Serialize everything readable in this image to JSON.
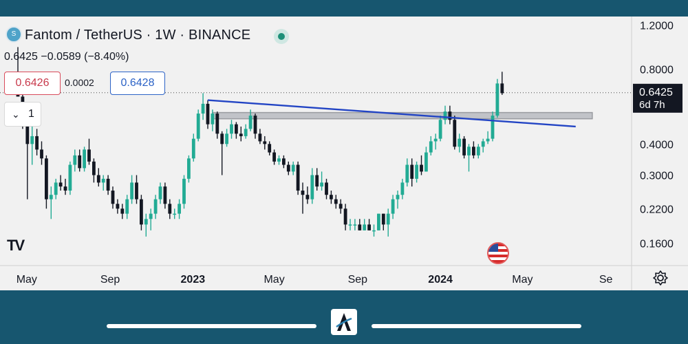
{
  "header": {
    "symbol_icon": "S",
    "title": "Fantom / TetherUS · 1W · BINANCE",
    "ohlc_change": "0.6425  −0.0589 (−8.40%)",
    "sell_price": "0.6426",
    "spread": "0.0002",
    "buy_price": "0.6428",
    "indicator_count": "1",
    "indicator_chevron": "⌄"
  },
  "overlays": {
    "watermark": "TV",
    "icons": [
      "status-dot-icon",
      "us-flag-icon",
      "settings-gear-icon",
      "app-logo-icon",
      "chevron-down-icon"
    ]
  },
  "colors": {
    "up": "#22ab94",
    "down": "#131722",
    "trendline": "#2244c4",
    "zone": "#b9bcc2",
    "background": "#f1f1f1",
    "frame": "#17566f"
  },
  "chart_data": {
    "type": "candlestick",
    "title": "Fantom / TetherUS · 1W · BINANCE",
    "scale": "log",
    "ylim": [
      0.13,
      1.3
    ],
    "y_ticks": [
      1.2,
      0.8,
      0.4,
      0.3,
      0.22,
      0.16
    ],
    "y_tick_labels": [
      "1.2000",
      "0.8000",
      "0.4000",
      "0.3000",
      "0.2200",
      "0.1600"
    ],
    "x_tick_labels": [
      "May",
      "Sep",
      "2023",
      "May",
      "Sep",
      "2024",
      "May",
      "Se"
    ],
    "x_ticks": [
      "2022-05",
      "2022-09",
      "2023-01",
      "2023-05",
      "2023-09",
      "2024-01",
      "2024-05",
      "2024-09"
    ],
    "bold_x_ticks": [
      "2023",
      "2024"
    ],
    "last_price": "0.6425",
    "last_price_value": 0.6425,
    "countdown": "6d 7h",
    "candles_approx": [
      [
        0.72,
        0.98,
        0.64,
        0.62
      ],
      [
        0.62,
        0.66,
        0.46,
        0.48
      ],
      [
        0.48,
        0.57,
        0.24,
        0.4
      ],
      [
        0.4,
        0.47,
        0.33,
        0.43
      ],
      [
        0.43,
        0.46,
        0.36,
        0.38
      ],
      [
        0.38,
        0.41,
        0.33,
        0.35
      ],
      [
        0.35,
        0.36,
        0.22,
        0.24
      ],
      [
        0.24,
        0.27,
        0.2,
        0.25
      ],
      [
        0.25,
        0.29,
        0.24,
        0.28
      ],
      [
        0.28,
        0.3,
        0.26,
        0.27
      ],
      [
        0.27,
        0.29,
        0.25,
        0.26
      ],
      [
        0.26,
        0.34,
        0.25,
        0.33
      ],
      [
        0.33,
        0.38,
        0.31,
        0.36
      ],
      [
        0.36,
        0.38,
        0.31,
        0.32
      ],
      [
        0.32,
        0.39,
        0.31,
        0.38
      ],
      [
        0.38,
        0.42,
        0.33,
        0.34
      ],
      [
        0.34,
        0.35,
        0.28,
        0.3
      ],
      [
        0.3,
        0.32,
        0.27,
        0.28
      ],
      [
        0.28,
        0.3,
        0.26,
        0.29
      ],
      [
        0.29,
        0.3,
        0.25,
        0.26
      ],
      [
        0.26,
        0.27,
        0.22,
        0.23
      ],
      [
        0.23,
        0.24,
        0.21,
        0.22
      ],
      [
        0.22,
        0.23,
        0.2,
        0.21
      ],
      [
        0.21,
        0.25,
        0.2,
        0.24
      ],
      [
        0.24,
        0.3,
        0.23,
        0.28
      ],
      [
        0.28,
        0.3,
        0.23,
        0.24
      ],
      [
        0.24,
        0.25,
        0.18,
        0.19
      ],
      [
        0.19,
        0.21,
        0.17,
        0.2
      ],
      [
        0.2,
        0.22,
        0.18,
        0.21
      ],
      [
        0.21,
        0.25,
        0.2,
        0.24
      ],
      [
        0.24,
        0.28,
        0.23,
        0.27
      ],
      [
        0.27,
        0.28,
        0.22,
        0.23
      ],
      [
        0.23,
        0.24,
        0.2,
        0.21
      ],
      [
        0.21,
        0.22,
        0.2,
        0.21
      ],
      [
        0.21,
        0.24,
        0.2,
        0.23
      ],
      [
        0.23,
        0.3,
        0.22,
        0.29
      ],
      [
        0.29,
        0.36,
        0.28,
        0.35
      ],
      [
        0.35,
        0.44,
        0.34,
        0.42
      ],
      [
        0.42,
        0.55,
        0.41,
        0.53
      ],
      [
        0.53,
        0.64,
        0.5,
        0.58
      ],
      [
        0.58,
        0.6,
        0.46,
        0.48
      ],
      [
        0.48,
        0.55,
        0.45,
        0.53
      ],
      [
        0.53,
        0.54,
        0.42,
        0.44
      ],
      [
        0.44,
        0.45,
        0.3,
        0.4
      ],
      [
        0.4,
        0.46,
        0.39,
        0.44
      ],
      [
        0.44,
        0.5,
        0.42,
        0.48
      ],
      [
        0.48,
        0.49,
        0.42,
        0.44
      ],
      [
        0.44,
        0.47,
        0.41,
        0.43
      ],
      [
        0.43,
        0.48,
        0.42,
        0.46
      ],
      [
        0.46,
        0.55,
        0.45,
        0.52
      ],
      [
        0.52,
        0.53,
        0.42,
        0.44
      ],
      [
        0.44,
        0.46,
        0.4,
        0.41
      ],
      [
        0.41,
        0.43,
        0.38,
        0.4
      ],
      [
        0.4,
        0.41,
        0.36,
        0.37
      ],
      [
        0.37,
        0.38,
        0.33,
        0.34
      ],
      [
        0.34,
        0.36,
        0.33,
        0.35
      ],
      [
        0.35,
        0.36,
        0.32,
        0.33
      ],
      [
        0.33,
        0.34,
        0.3,
        0.31
      ],
      [
        0.31,
        0.34,
        0.3,
        0.33
      ],
      [
        0.33,
        0.34,
        0.25,
        0.26
      ],
      [
        0.26,
        0.28,
        0.21,
        0.25
      ],
      [
        0.25,
        0.27,
        0.23,
        0.24
      ],
      [
        0.24,
        0.32,
        0.23,
        0.3
      ],
      [
        0.3,
        0.32,
        0.26,
        0.27
      ],
      [
        0.27,
        0.31,
        0.26,
        0.28
      ],
      [
        0.28,
        0.29,
        0.24,
        0.25
      ],
      [
        0.25,
        0.26,
        0.23,
        0.24
      ],
      [
        0.24,
        0.25,
        0.22,
        0.23
      ],
      [
        0.23,
        0.24,
        0.21,
        0.22
      ],
      [
        0.22,
        0.23,
        0.18,
        0.19
      ],
      [
        0.19,
        0.2,
        0.18,
        0.19
      ],
      [
        0.19,
        0.2,
        0.18,
        0.19
      ],
      [
        0.19,
        0.2,
        0.18,
        0.18
      ],
      [
        0.18,
        0.2,
        0.18,
        0.19
      ],
      [
        0.19,
        0.2,
        0.18,
        0.18
      ],
      [
        0.18,
        0.19,
        0.17,
        0.18
      ],
      [
        0.18,
        0.21,
        0.18,
        0.21
      ],
      [
        0.21,
        0.21,
        0.18,
        0.19
      ],
      [
        0.19,
        0.22,
        0.17,
        0.21
      ],
      [
        0.21,
        0.25,
        0.2,
        0.24
      ],
      [
        0.24,
        0.26,
        0.22,
        0.25
      ],
      [
        0.25,
        0.29,
        0.24,
        0.28
      ],
      [
        0.28,
        0.35,
        0.27,
        0.33
      ],
      [
        0.33,
        0.35,
        0.27,
        0.29
      ],
      [
        0.29,
        0.34,
        0.28,
        0.33
      ],
      [
        0.33,
        0.36,
        0.3,
        0.31
      ],
      [
        0.31,
        0.39,
        0.31,
        0.37
      ],
      [
        0.37,
        0.43,
        0.36,
        0.41
      ],
      [
        0.41,
        0.44,
        0.38,
        0.42
      ],
      [
        0.42,
        0.52,
        0.41,
        0.5
      ],
      [
        0.5,
        0.57,
        0.48,
        0.54
      ],
      [
        0.54,
        0.57,
        0.48,
        0.5
      ],
      [
        0.5,
        0.52,
        0.38,
        0.39
      ],
      [
        0.39,
        0.44,
        0.37,
        0.42
      ],
      [
        0.42,
        0.43,
        0.35,
        0.36
      ],
      [
        0.36,
        0.4,
        0.31,
        0.39
      ],
      [
        0.39,
        0.41,
        0.35,
        0.36
      ],
      [
        0.36,
        0.4,
        0.35,
        0.39
      ],
      [
        0.39,
        0.42,
        0.37,
        0.41
      ],
      [
        0.41,
        0.45,
        0.4,
        0.42
      ],
      [
        0.42,
        0.54,
        0.41,
        0.52
      ],
      [
        0.52,
        0.73,
        0.51,
        0.7
      ],
      [
        0.7,
        0.78,
        0.63,
        0.64
      ]
    ],
    "annotations": [
      "descending trendline from the 2023 high to mid-2024",
      "horizontal resistance zone around 0.52"
    ]
  }
}
